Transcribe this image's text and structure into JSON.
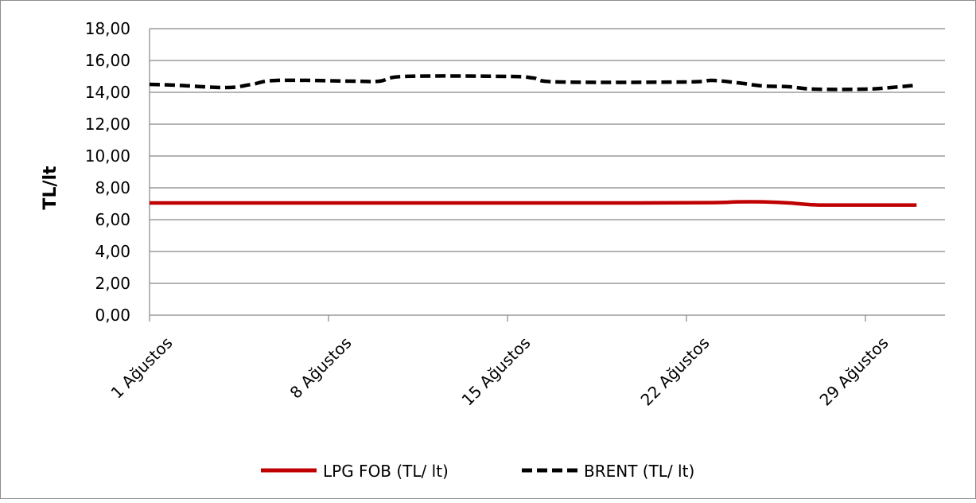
{
  "chart_data": {
    "type": "line",
    "ylabel": "TL/lt",
    "ylim": [
      0,
      18
    ],
    "y_ticks": [
      "0,00",
      "2,00",
      "4,00",
      "6,00",
      "8,00",
      "10,00",
      "12,00",
      "14,00",
      "16,00",
      "18,00"
    ],
    "x_tick_labels": [
      "1 Ağustos",
      "8 Ağustos",
      "15 Ağustos",
      "22 Ağustos",
      "29 Ağustos"
    ],
    "x_tick_days": [
      1,
      8,
      15,
      22,
      29
    ],
    "x_day_range": [
      1,
      31
    ],
    "grid": "horizontal",
    "legend_position": "bottom",
    "series": [
      {
        "name": "LPG FOB (TL/ lt)",
        "color": "#c00000",
        "style": "solid",
        "points": [
          [
            1,
            7.05
          ],
          [
            5,
            7.05
          ],
          [
            10,
            7.05
          ],
          [
            15,
            7.05
          ],
          [
            20,
            7.05
          ],
          [
            23,
            7.07
          ],
          [
            24,
            7.12
          ],
          [
            25,
            7.12
          ],
          [
            26,
            7.05
          ],
          [
            27,
            6.93
          ],
          [
            28,
            6.92
          ],
          [
            31,
            6.92
          ]
        ]
      },
      {
        "name": "BRENT (TL/ lt)",
        "color": "#000000",
        "style": "dashed",
        "points": [
          [
            1,
            14.5
          ],
          [
            2,
            14.45
          ],
          [
            4,
            14.3
          ],
          [
            5,
            14.5
          ],
          [
            6,
            14.75
          ],
          [
            9,
            14.7
          ],
          [
            10,
            14.7
          ],
          [
            11,
            15.0
          ],
          [
            15,
            15.0
          ],
          [
            16,
            14.9
          ],
          [
            17,
            14.65
          ],
          [
            22,
            14.65
          ],
          [
            23,
            14.75
          ],
          [
            24,
            14.6
          ],
          [
            25,
            14.4
          ],
          [
            26,
            14.35
          ],
          [
            27,
            14.2
          ],
          [
            29,
            14.2
          ],
          [
            30,
            14.3
          ],
          [
            31,
            14.45
          ]
        ]
      }
    ]
  }
}
